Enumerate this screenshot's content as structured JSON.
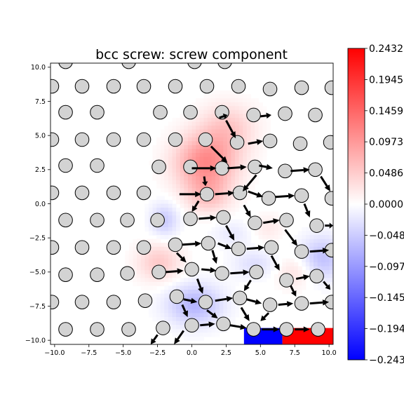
{
  "chart_data": {
    "type": "heatmap",
    "title": "bcc screw: screw component",
    "xlabel": "",
    "ylabel": "",
    "xlim": [
      -10.3,
      10.3
    ],
    "ylim": [
      -10.3,
      10.3
    ],
    "xticks": [
      -10.0,
      -7.5,
      -5.0,
      -2.5,
      0.0,
      2.5,
      5.0,
      7.5,
      10.0
    ],
    "yticks": [
      -10.0,
      -7.5,
      -5.0,
      -2.5,
      0.0,
      2.5,
      5.0,
      7.5,
      10.0
    ],
    "xtick_labels": [
      "−10.0",
      "−7.5",
      "−5.0",
      "−2.5",
      "0.0",
      "2.5",
      "5.0",
      "7.5",
      "10.0"
    ],
    "ytick_labels": [
      "−10.0",
      "−7.5",
      "−5.0",
      "−2.5",
      "0.0",
      "2.5",
      "5.0",
      "7.5",
      "10.0"
    ],
    "colormap": "bwr",
    "colors": {
      "low": "#0000ff",
      "mid": "#ffffff",
      "high": "#ff0000",
      "atom": "#d3d3d3"
    },
    "colorbar": {
      "range": [
        -0.2432,
        0.2432
      ],
      "ticks": [
        0.2432,
        0.1945,
        0.1459,
        0.0973,
        0.0486,
        0.0,
        -0.0486,
        -0.0973,
        -0.1459,
        -0.1945,
        -0.2432
      ],
      "tick_labels": [
        "0.2432",
        "0.1945",
        "0.1459",
        "0.0973",
        "0.0486",
        "0.0000",
        "−0.048",
        "−0.097",
        "−0.145",
        "−0.194",
        "−0.243"
      ]
    },
    "field_blobs": [
      {
        "x": 1.0,
        "y": 3.0,
        "sx": 2.2,
        "sy": 2.0,
        "v": 0.11
      },
      {
        "x": 2.6,
        "y": 5.5,
        "sx": 2.0,
        "sy": 1.8,
        "v": 0.05
      },
      {
        "x": 1.2,
        "y": 0.6,
        "sx": 1.6,
        "sy": 1.3,
        "v": 0.05
      },
      {
        "x": -2.4,
        "y": -4.3,
        "sx": 1.6,
        "sy": 1.4,
        "v": 0.05
      },
      {
        "x": 7.6,
        "y": -5.0,
        "sx": 1.5,
        "sy": 1.2,
        "v": 0.03
      },
      {
        "x": 5.5,
        "y": -1.8,
        "sx": 1.2,
        "sy": 1.0,
        "v": 0.02
      },
      {
        "x": -2.0,
        "y": -1.2,
        "sx": 1.0,
        "sy": 1.2,
        "v": -0.05
      },
      {
        "x": 0.2,
        "y": -7.4,
        "sx": 2.0,
        "sy": 1.5,
        "v": -0.07
      },
      {
        "x": 9.5,
        "y": -4.0,
        "sx": 1.6,
        "sy": 1.6,
        "v": -0.06
      },
      {
        "x": 4.6,
        "y": -4.4,
        "sx": 1.6,
        "sy": 1.0,
        "v": -0.03
      },
      {
        "x": 3.0,
        "y": -2.2,
        "sx": 1.5,
        "sy": 1.0,
        "v": -0.02
      }
    ],
    "field_patches": [
      {
        "x0": 3.8,
        "x1": 6.6,
        "y0": -10.3,
        "y1": -9.1,
        "v": -0.2432
      },
      {
        "x0": 6.6,
        "x1": 10.3,
        "y0": -10.3,
        "y1": -9.1,
        "v": 0.2432
      }
    ],
    "atoms": [
      [
        -9.2,
        10.4
      ],
      [
        -4.6,
        10.4
      ],
      [
        0.2,
        10.4
      ],
      [
        2.4,
        10.4
      ],
      [
        -10.2,
        8.6
      ],
      [
        -8.0,
        8.6
      ],
      [
        -5.7,
        8.6
      ],
      [
        -3.5,
        8.6
      ],
      [
        -1.2,
        8.6
      ],
      [
        1.1,
        8.6
      ],
      [
        3.4,
        8.6
      ],
      [
        5.7,
        8.4
      ],
      [
        8.0,
        8.5
      ],
      [
        10.2,
        8.5
      ],
      [
        -9.2,
        6.7
      ],
      [
        -6.9,
        6.7
      ],
      [
        -2.3,
        6.7
      ],
      [
        -0.1,
        6.7
      ],
      [
        2.2,
        6.7
      ],
      [
        4.5,
        6.5
      ],
      [
        6.8,
        6.6
      ],
      [
        9.0,
        6.5
      ],
      [
        -10.2,
        4.7
      ],
      [
        -8.0,
        4.7
      ],
      [
        -5.7,
        4.7
      ],
      [
        -3.5,
        4.7
      ],
      [
        -1.2,
        4.7
      ],
      [
        1.0,
        4.7
      ],
      [
        3.3,
        4.5
      ],
      [
        5.7,
        4.6
      ],
      [
        7.9,
        4.4
      ],
      [
        10.1,
        4.5
      ],
      [
        -9.2,
        2.8
      ],
      [
        -6.9,
        2.8
      ],
      [
        -2.4,
        2.7
      ],
      [
        -0.1,
        2.7
      ],
      [
        2.2,
        2.6
      ],
      [
        4.6,
        2.7
      ],
      [
        6.8,
        2.4
      ],
      [
        9.0,
        2.5
      ],
      [
        -10.2,
        0.8
      ],
      [
        -8.0,
        0.8
      ],
      [
        -5.7,
        0.8
      ],
      [
        -3.5,
        0.8
      ],
      [
        1.1,
        0.7
      ],
      [
        3.5,
        0.8
      ],
      [
        5.6,
        0.4
      ],
      [
        8.0,
        0.6
      ],
      [
        10.2,
        0.4
      ],
      [
        -9.2,
        -1.2
      ],
      [
        -6.9,
        -1.2
      ],
      [
        -4.7,
        -1.2
      ],
      [
        -2.5,
        -1.2
      ],
      [
        -0.1,
        -1.1
      ],
      [
        2.3,
        -1.0
      ],
      [
        4.6,
        -1.4
      ],
      [
        6.9,
        -1.2
      ],
      [
        9.1,
        -1.6
      ],
      [
        -10.2,
        -3.2
      ],
      [
        -8.0,
        -3.2
      ],
      [
        -5.7,
        -3.2
      ],
      [
        -3.5,
        -3.2
      ],
      [
        -1.2,
        -3.0
      ],
      [
        1.2,
        -2.9
      ],
      [
        3.4,
        -3.3
      ],
      [
        5.8,
        -3.2
      ],
      [
        8.0,
        -3.5
      ],
      [
        10.2,
        -3.4
      ],
      [
        -9.2,
        -5.2
      ],
      [
        -6.9,
        -5.2
      ],
      [
        -4.7,
        -5.1
      ],
      [
        -2.4,
        -5.0
      ],
      [
        0.0,
        -4.8
      ],
      [
        2.2,
        -5.1
      ],
      [
        4.7,
        -5.0
      ],
      [
        6.9,
        -5.6
      ],
      [
        9.1,
        -5.3
      ],
      [
        -10.2,
        -7.2
      ],
      [
        -8.0,
        -7.2
      ],
      [
        -5.7,
        -7.2
      ],
      [
        -3.4,
        -7.1
      ],
      [
        -1.1,
        -6.8
      ],
      [
        1.0,
        -7.2
      ],
      [
        3.5,
        -6.9
      ],
      [
        5.7,
        -7.4
      ],
      [
        8.0,
        -7.3
      ],
      [
        10.2,
        -7.2
      ],
      [
        -9.2,
        -9.2
      ],
      [
        -6.9,
        -9.2
      ],
      [
        -4.6,
        -9.2
      ],
      [
        -2.1,
        -9.1
      ],
      [
        0.0,
        -8.9
      ],
      [
        2.3,
        -8.8
      ],
      [
        4.5,
        -9.2
      ],
      [
        6.9,
        -9.2
      ],
      [
        9.2,
        -9.2
      ]
    ],
    "arrows": [
      [
        2.0,
        6.3,
        2.6,
        6.5
      ],
      [
        5.0,
        6.4,
        5.8,
        6.5
      ],
      [
        2.5,
        6.1,
        3.2,
        4.8
      ],
      [
        4.1,
        4.4,
        5.2,
        4.6
      ],
      [
        1.4,
        4.2,
        2.6,
        3.0
      ],
      [
        0.0,
        2.6,
        1.8,
        2.6
      ],
      [
        2.6,
        2.6,
        4.0,
        2.7
      ],
      [
        4.9,
        2.8,
        5.9,
        2.6
      ],
      [
        7.2,
        2.4,
        8.6,
        2.5
      ],
      [
        4.7,
        2.1,
        3.7,
        0.9
      ],
      [
        9.4,
        2.0,
        10.1,
        0.9
      ],
      [
        0.9,
        2.0,
        1.0,
        1.3
      ],
      [
        -0.9,
        0.7,
        0.7,
        0.7
      ],
      [
        1.7,
        0.7,
        3.1,
        0.8
      ],
      [
        4.1,
        0.9,
        5.2,
        0.5
      ],
      [
        6.1,
        0.5,
        7.5,
        0.6
      ],
      [
        3.8,
        -0.1,
        4.3,
        -1.0
      ],
      [
        0.5,
        0.2,
        0.0,
        -0.6
      ],
      [
        8.2,
        0.0,
        8.6,
        -1.0
      ],
      [
        0.5,
        -1.1,
        1.8,
        -1.0
      ],
      [
        5.2,
        -1.4,
        6.4,
        -1.2
      ],
      [
        2.5,
        -1.6,
        3.1,
        -2.7
      ],
      [
        9.7,
        -1.6,
        10.3,
        -1.6
      ],
      [
        6.8,
        -1.9,
        7.7,
        -3.1
      ],
      [
        -0.7,
        -3.0,
        0.7,
        -2.9
      ],
      [
        1.9,
        -2.9,
        2.9,
        -3.3
      ],
      [
        4.0,
        -3.3,
        5.3,
        -3.2
      ],
      [
        8.6,
        -3.5,
        10.0,
        -3.4
      ],
      [
        -1.1,
        -3.6,
        -0.4,
        -4.3
      ],
      [
        5.8,
        -3.8,
        6.4,
        -4.9
      ],
      [
        1.5,
        -3.4,
        1.8,
        -4.4
      ],
      [
        0.7,
        -4.8,
        1.8,
        -4.9
      ],
      [
        2.8,
        -5.1,
        4.2,
        -5.0
      ],
      [
        7.6,
        -5.5,
        8.6,
        -5.3
      ],
      [
        -1.9,
        -5.0,
        -0.6,
        -4.9
      ],
      [
        0.4,
        -5.5,
        0.8,
        -6.6
      ],
      [
        4.3,
        -5.6,
        3.8,
        -6.4
      ],
      [
        7.2,
        -6.0,
        7.6,
        -6.8
      ],
      [
        9.6,
        -5.7,
        10.1,
        -6.3
      ],
      [
        -0.6,
        -7.0,
        0.4,
        -7.2
      ],
      [
        1.7,
        -7.1,
        3.0,
        -6.9
      ],
      [
        4.0,
        -7.0,
        5.1,
        -7.3
      ],
      [
        6.3,
        -7.4,
        7.4,
        -7.3
      ],
      [
        8.6,
        -7.3,
        10.0,
        -7.2
      ],
      [
        -0.7,
        -7.4,
        -0.3,
        -8.3
      ],
      [
        1.1,
        -7.8,
        1.9,
        -8.4
      ],
      [
        3.6,
        -7.6,
        4.2,
        -8.6
      ],
      [
        5.6,
        -8.0,
        5.0,
        -8.6
      ],
      [
        0.6,
        -8.9,
        1.7,
        -8.8
      ],
      [
        2.8,
        -8.9,
        4.0,
        -9.1
      ],
      [
        5.1,
        -9.2,
        6.4,
        -9.2
      ],
      [
        7.5,
        -9.2,
        8.6,
        -9.2
      ],
      [
        -0.6,
        -9.3,
        -1.3,
        -10.3
      ],
      [
        -2.5,
        -9.6,
        -3.0,
        -10.3
      ]
    ],
    "grid": false,
    "legend": "none"
  }
}
